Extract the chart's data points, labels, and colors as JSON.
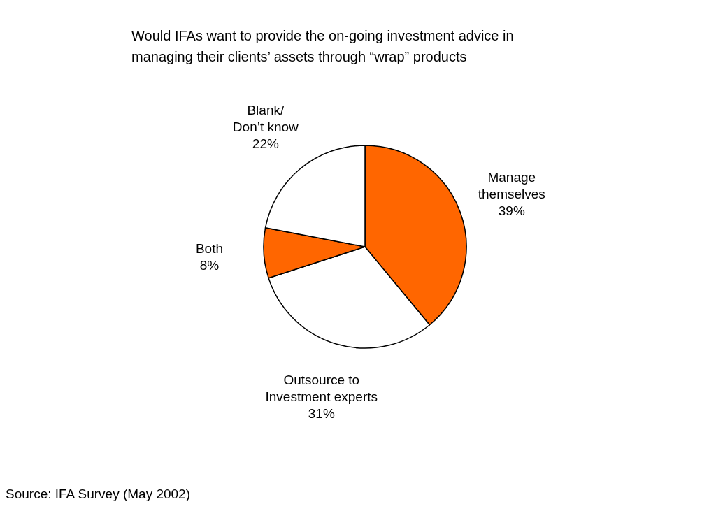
{
  "chart_data": {
    "type": "pie",
    "title": "Would IFAs want to provide the on-going investment advice in managing their clients’ assets through “wrap” products",
    "categories": [
      "Manage themselves",
      "Outsource to Investment experts",
      "Both",
      "Blank/ Don’t know"
    ],
    "values": [
      39,
      31,
      8,
      22
    ],
    "value_labels": [
      "39%",
      "31%",
      "8%",
      "22%"
    ],
    "colors": [
      "#ff6600",
      "#ffffff",
      "#ff6600",
      "#ffffff"
    ],
    "legend": false,
    "annotations": [
      "Source: IFA Survey (May 2002)"
    ]
  }
}
